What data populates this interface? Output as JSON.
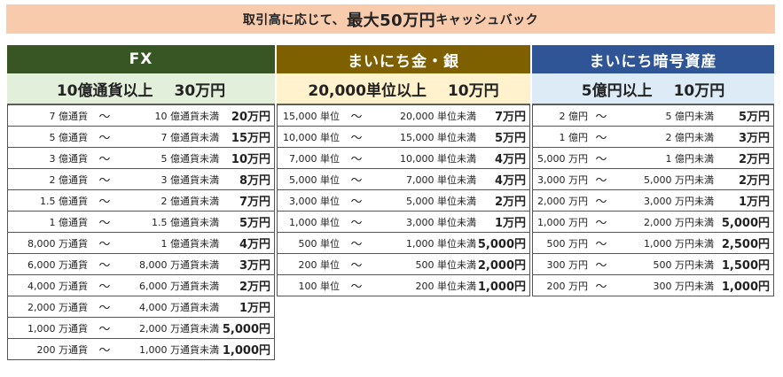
{
  "banner": {
    "prefix": "取引高に応じて、",
    "highlight": "最大50万円",
    "suffix": "キャッシュバック"
  },
  "columns": [
    {
      "id": "fx",
      "title": "FX",
      "condition": "10億通貨以上",
      "condition_amount": "30万円",
      "rows": [
        {
          "from": "7 億通貨",
          "to": "10 億通貨未満",
          "reward": "20万円"
        },
        {
          "from": "5 億通貨",
          "to": "7 億通貨未満",
          "reward": "15万円"
        },
        {
          "from": "3 億通貨",
          "to": "5 億通貨未満",
          "reward": "10万円"
        },
        {
          "from": "2 億通貨",
          "to": "3 億通貨未満",
          "reward": "8万円"
        },
        {
          "from": "1.5 億通貨",
          "to": "2 億通貨未満",
          "reward": "7万円"
        },
        {
          "from": "1 億通貨",
          "to": "1.5 億通貨未満",
          "reward": "5万円"
        },
        {
          "from": "8,000 万通貨",
          "to": "1 億通貨未満",
          "reward": "4万円"
        },
        {
          "from": "6,000 万通貨",
          "to": "8,000 万通貨未満",
          "reward": "3万円"
        },
        {
          "from": "4,000 万通貨",
          "to": "6,000 万通貨未満",
          "reward": "2万円"
        },
        {
          "from": "2,000 万通貨",
          "to": "4,000 万通貨未満",
          "reward": "1万円"
        },
        {
          "from": "1,000 万通貨",
          "to": "2,000 万通貨未満",
          "reward": "5,000円"
        },
        {
          "from": "200 万通貨",
          "to": "1,000 万通貨未満",
          "reward": "1,000円"
        }
      ]
    },
    {
      "id": "gin",
      "title": "まいにち金・銀",
      "condition": "20,000単位以上",
      "condition_amount": "10万円",
      "rows": [
        {
          "from": "15,000 単位",
          "to": "20,000 単位未満",
          "reward": "7万円"
        },
        {
          "from": "10,000 単位",
          "to": "15,000 単位未満",
          "reward": "5万円"
        },
        {
          "from": "7,000 単位",
          "to": "10,000 単位未満",
          "reward": "4万円"
        },
        {
          "from": "5,000 単位",
          "to": "7,000 単位未満",
          "reward": "4万円"
        },
        {
          "from": "3,000 単位",
          "to": "5,000 単位未満",
          "reward": "2万円"
        },
        {
          "from": "1,000 単位",
          "to": "3,000 単位未満",
          "reward": "1万円"
        },
        {
          "from": "500 単位",
          "to": "1,000 単位未満",
          "reward": "5,000円"
        },
        {
          "from": "200 単位",
          "to": "500 単位未満",
          "reward": "2,000円"
        },
        {
          "from": "100 単位",
          "to": "200 単位未満",
          "reward": "1,000円"
        }
      ]
    },
    {
      "id": "ango",
      "title": "まいにち暗号資産",
      "condition": "5億円以上",
      "condition_amount": "10万円",
      "rows": [
        {
          "from": "2 億円",
          "to": "5 億円未満",
          "reward": "5万円"
        },
        {
          "from": "1 億円",
          "to": "2 億円未満",
          "reward": "3万円"
        },
        {
          "from": "5,000 万円",
          "to": "1 億円未満",
          "reward": "2万円"
        },
        {
          "from": "3,000 万円",
          "to": "5,000 万円未満",
          "reward": "2万円"
        },
        {
          "from": "2,000 万円",
          "to": "3,000 万円未満",
          "reward": "1万円"
        },
        {
          "from": "1,000 万円",
          "to": "2,000 万円未満",
          "reward": "5,000円"
        },
        {
          "from": "500 万円",
          "to": "1,000 万円未満",
          "reward": "2,500円"
        },
        {
          "from": "300 万円",
          "to": "500 万円未満",
          "reward": "1,500円"
        },
        {
          "from": "200 万円",
          "to": "300 万円未満",
          "reward": "1,000円"
        }
      ]
    }
  ],
  "tilde": "～",
  "colors": {
    "fx_header": "#375623",
    "gin_header": "#7f6000",
    "ango_header": "#2f5597",
    "banner_bg": "#f8cbad"
  }
}
